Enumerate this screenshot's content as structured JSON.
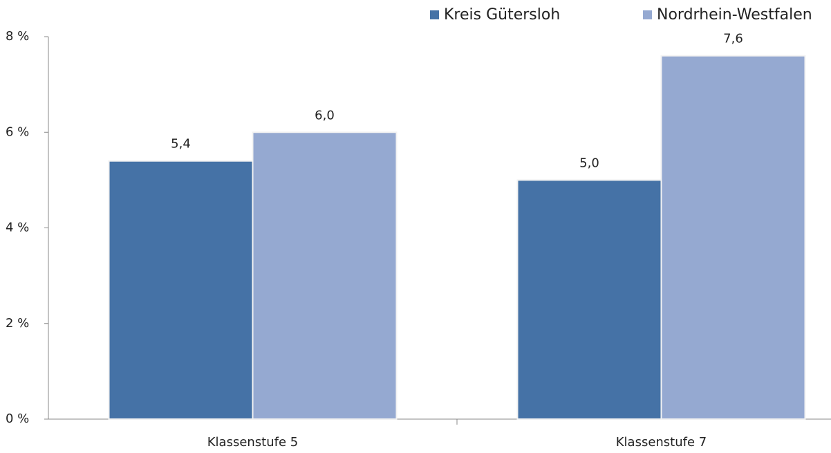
{
  "chart_data": {
    "type": "bar",
    "categories": [
      "Klassenstufe 5",
      "Klassenstufe 7"
    ],
    "series": [
      {
        "name": "Kreis Gütersloh",
        "color": "#4572a6",
        "values": [
          5.4,
          5.0
        ],
        "value_labels": [
          "5,4",
          "5,0"
        ]
      },
      {
        "name": "Nordrhein-Westfalen",
        "color": "#95a9d1",
        "values": [
          6.0,
          7.6
        ],
        "value_labels": [
          "6,0",
          "7,6"
        ]
      }
    ],
    "ylim": [
      0,
      8
    ],
    "yticks": [
      {
        "value": 0,
        "label": "0 %"
      },
      {
        "value": 2,
        "label": "2 %"
      },
      {
        "value": 4,
        "label": "4 %"
      },
      {
        "value": 6,
        "label": "6 %"
      },
      {
        "value": 8,
        "label": "8 %"
      }
    ]
  }
}
